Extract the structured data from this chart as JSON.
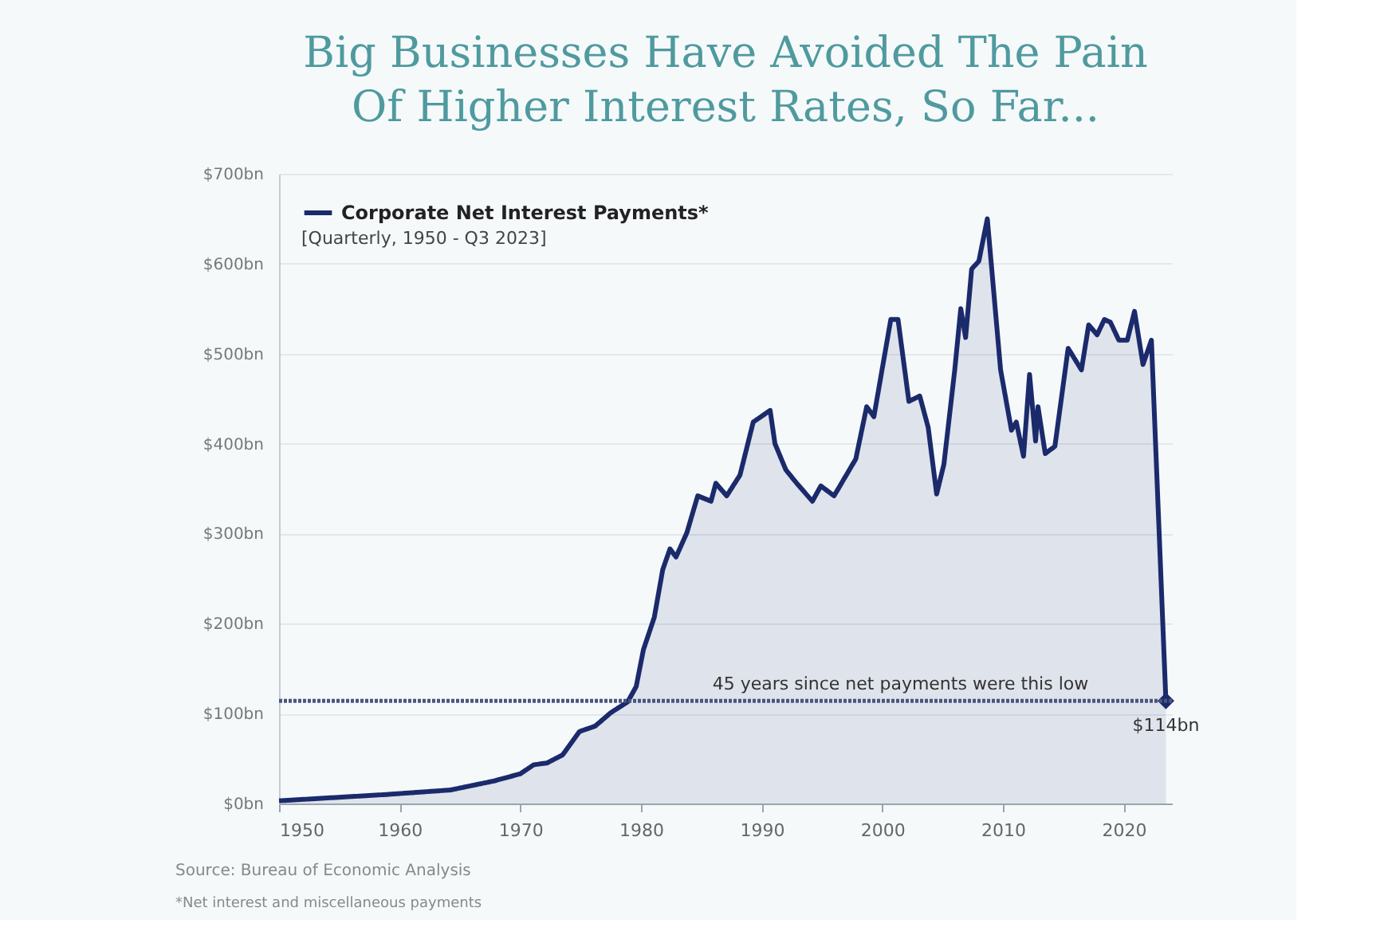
{
  "chart_data": {
    "type": "area",
    "title": "Big Businesses Have Avoided The Pain Of Higher Interest Rates, So Far...",
    "legend_title": "[Quarterly, 1950 - Q3 2023]",
    "legend": "top left",
    "grid": "y",
    "xlim": [
      1950,
      2024
    ],
    "xticks": [
      1950,
      1960,
      1970,
      1980,
      1990,
      2000,
      2010,
      2020
    ],
    "ylim": [
      0,
      700
    ],
    "yticks": [
      {
        "value": 0,
        "label": "$0bn"
      },
      {
        "value": 100,
        "label": "$100bn"
      },
      {
        "value": 200,
        "label": "$200bn"
      },
      {
        "value": 300,
        "label": "$300bn"
      },
      {
        "value": 400,
        "label": "$400bn"
      },
      {
        "value": 500,
        "label": "$500bn"
      },
      {
        "value": 600,
        "label": "$600bn"
      },
      {
        "value": 700,
        "label": "$700bn"
      }
    ],
    "series": [
      {
        "name": "Corporate Net Interest Payments*",
        "color": "#1b2a6b",
        "x": [
          1950,
          1958.9,
          1964.2,
          1967.8,
          1970,
          1971.1,
          1972.2,
          1973.5,
          1974.9,
          1976.2,
          1977.5,
          1978.9,
          1979.6,
          1980.2,
          1981.1,
          1981.8,
          1982.4,
          1982.9,
          1983.8,
          1984.7,
          1985.8,
          1986.2,
          1987.1,
          1988.2,
          1989.3,
          1990.7,
          1991.1,
          1992,
          1992.9,
          1994.2,
          1994.9,
          1996,
          1997.8,
          1998.7,
          1999.3,
          2000.7,
          2001.3,
          2002.2,
          2003.1,
          2003.8,
          2004.5,
          2005.1,
          2006,
          2006.5,
          2006.9,
          2007.4,
          2008,
          2008.7,
          2009.8,
          2010.7,
          2011.1,
          2011.7,
          2012.2,
          2012.7,
          2012.9,
          2013.5,
          2014.3,
          2015.4,
          2016.5,
          2017.1,
          2017.8,
          2018.4,
          2018.9,
          2019.6,
          2020.3,
          2020.9,
          2021.6,
          2022.3,
          2023.5
        ],
        "values": [
          3,
          10,
          15,
          25,
          33,
          43,
          45,
          54,
          80,
          86,
          101,
          113,
          130,
          171,
          207,
          260,
          283,
          274,
          301,
          342,
          336,
          356,
          342,
          365,
          424,
          437,
          400,
          371,
          356,
          336,
          353,
          342,
          383,
          441,
          430,
          538,
          538,
          447,
          453,
          418,
          344,
          377,
          482,
          550,
          518,
          594,
          603,
          650,
          482,
          415,
          424,
          386,
          477,
          403,
          441,
          389,
          397,
          506,
          482,
          532,
          521,
          538,
          535,
          515,
          515,
          547,
          488,
          515,
          114
        ]
      },
      {
        "type": "scatter",
        "marker": "diamond",
        "color": "#1b2a6b",
        "x": [
          2023.5
        ],
        "values": [
          114
        ]
      }
    ],
    "ref_lines": [
      {
        "axis": "y",
        "value": 114,
        "label": "45 years since net payments were this low",
        "line_style": "dotted",
        "color": "#4a5580"
      }
    ],
    "annotations": [
      {
        "text": "$114bn",
        "x": 2023.5,
        "y": 114
      },
      "Source: Bureau of Economic Analysis",
      "*Net interest and miscellaneous payments"
    ]
  }
}
